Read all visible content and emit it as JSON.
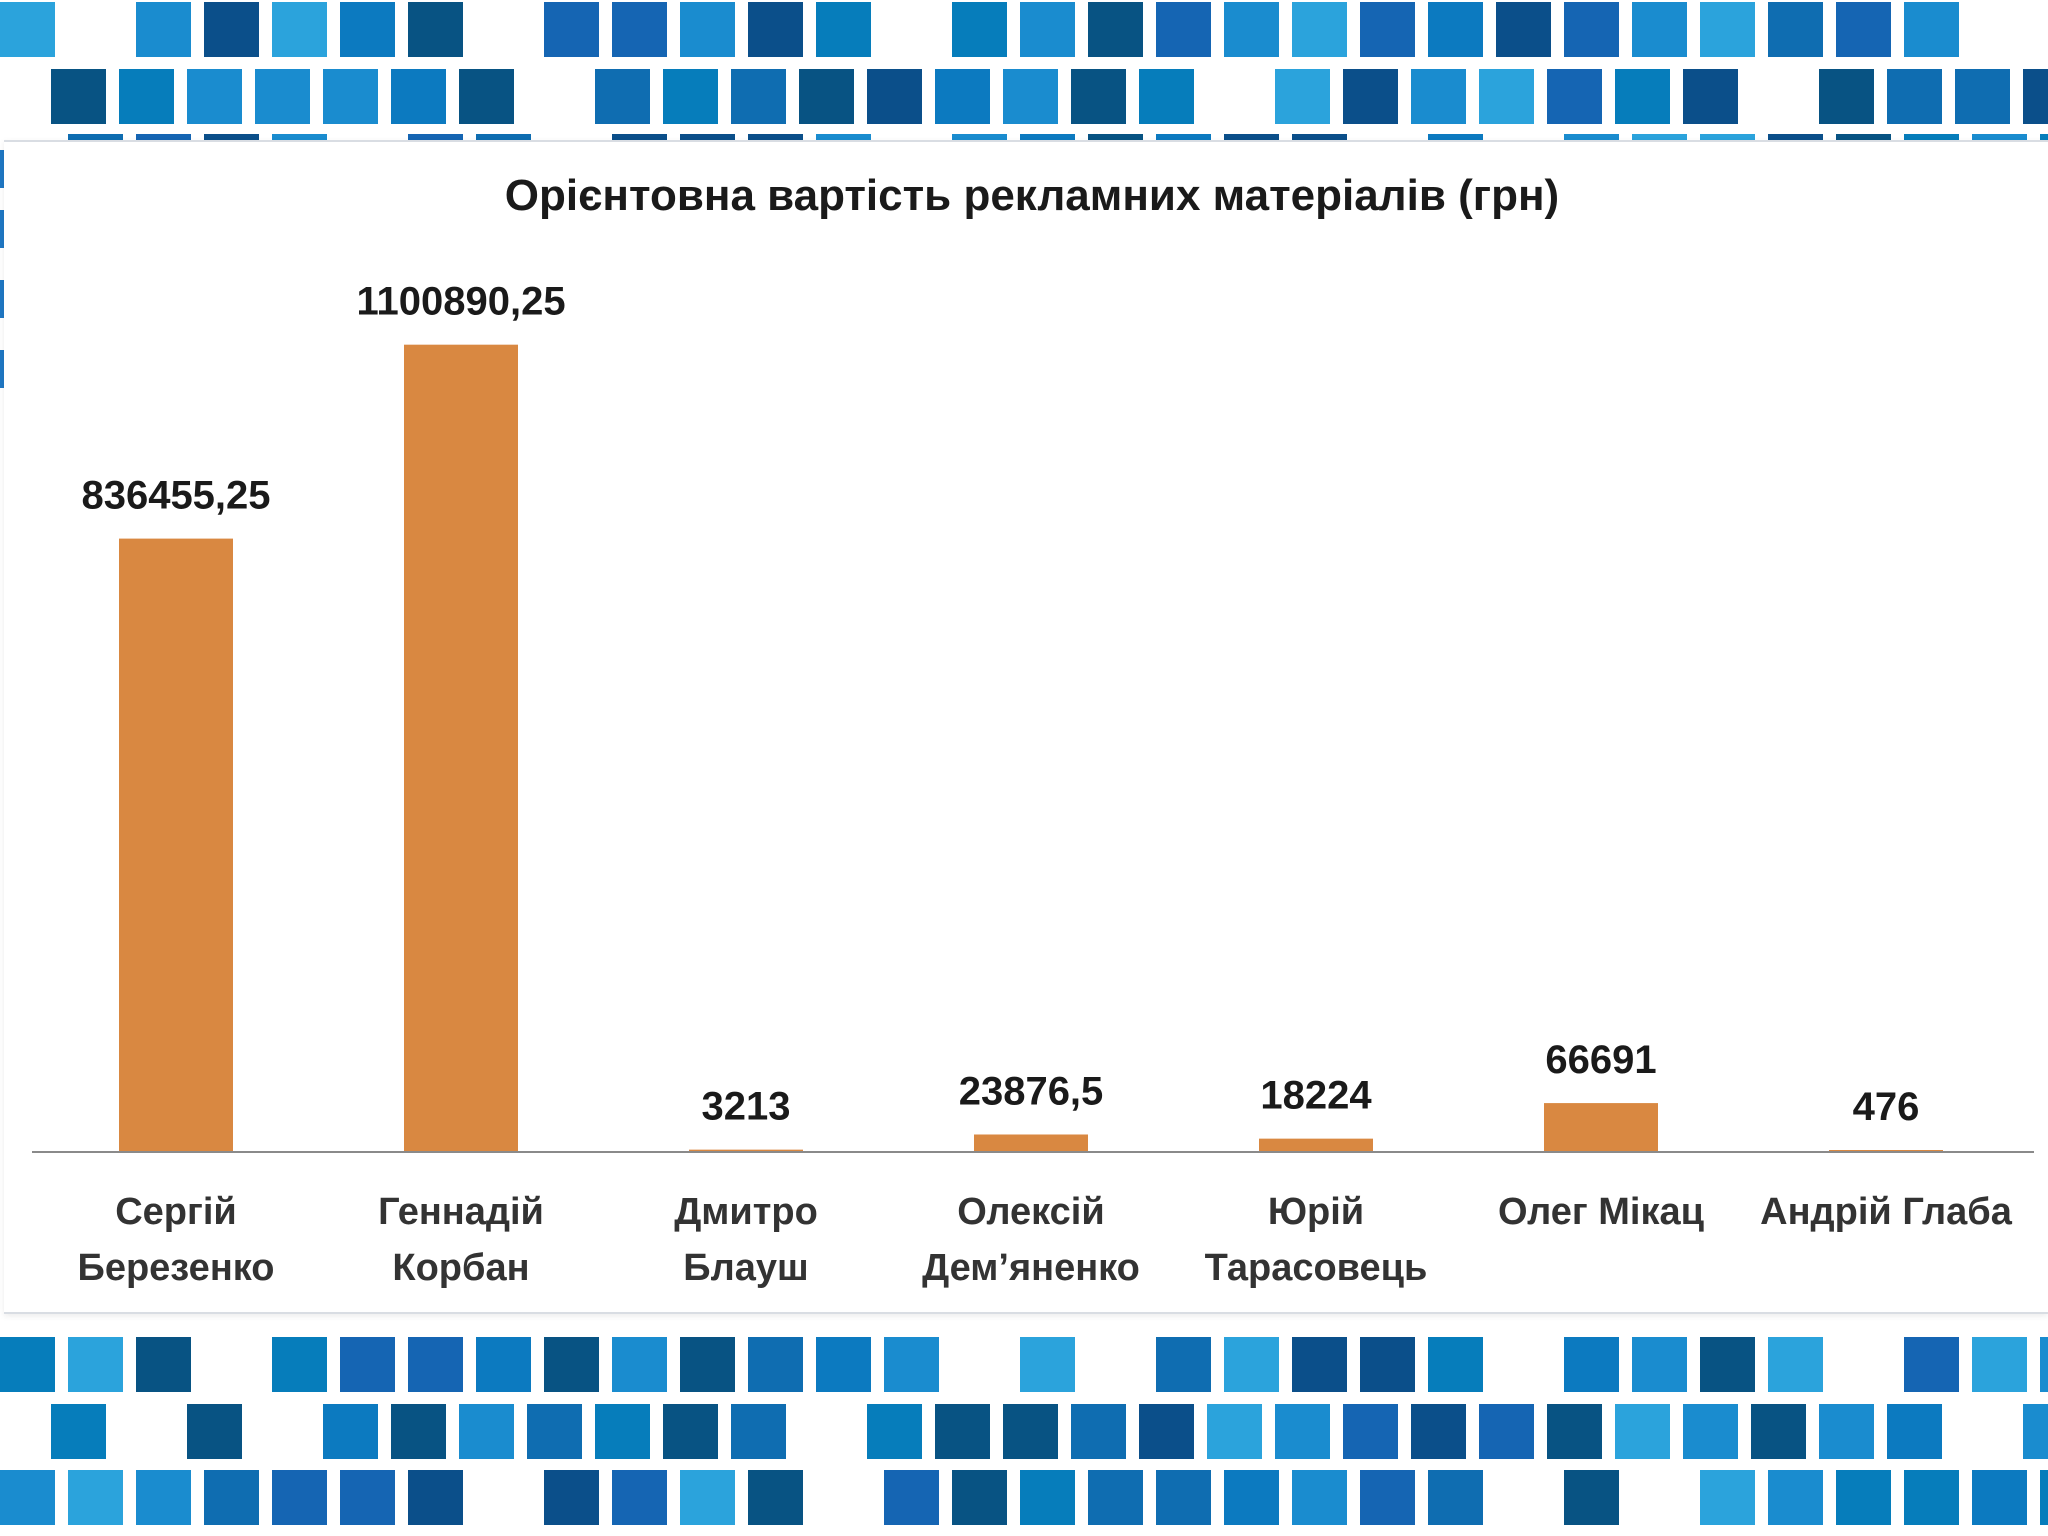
{
  "colors": {
    "bar": "#d98841",
    "tiles": [
      "#0b4f8a",
      "#1565b3",
      "#0c7ac0",
      "#1a8ccf",
      "#2ba3dc",
      "#085383",
      "#0f6db1",
      "#067dbb"
    ]
  },
  "chart_data": {
    "type": "bar",
    "title": "Орієнтовна вартість рекламних матеріалів (грн)",
    "xlabel": "",
    "ylabel": "",
    "ylim": [
      0,
      1200000
    ],
    "grid": false,
    "legend": "none",
    "categories": [
      [
        "Сергій",
        "Березенко"
      ],
      [
        "Геннадій",
        "Корбан"
      ],
      [
        "Дмитро",
        "Блауш"
      ],
      [
        "Олексій",
        "Дем’яненко"
      ],
      [
        "Юрій",
        "Тарасовець"
      ],
      [
        "Олег Мікац"
      ],
      [
        "Андрій Глаба"
      ]
    ],
    "values": [
      836455.25,
      1100890.25,
      3213,
      23876.5,
      18224,
      66691,
      476
    ],
    "data_labels": [
      "836455,25",
      "1100890,25",
      "3213",
      "23876,5",
      "18224",
      "66691",
      "476"
    ]
  }
}
